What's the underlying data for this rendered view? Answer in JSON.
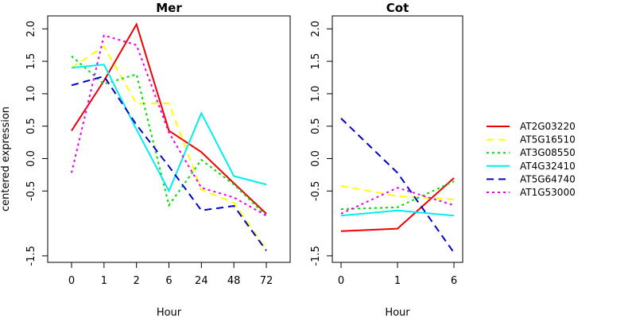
{
  "chart_data": {
    "type": "line",
    "ylabel": "centered expression",
    "ylim": [
      -1.6,
      2.2
    ],
    "yticks": [
      -1.5,
      -0.5,
      0.0,
      0.5,
      1.0,
      1.5,
      2.0
    ],
    "yticklabels": [
      "-1.5",
      "-0.5",
      "0.0",
      "0.5",
      "1.0",
      "1.5",
      "2.0"
    ],
    "legend_position": "right",
    "legend": [
      "AT2G03220",
      "AT5G16510",
      "AT3G08550",
      "AT4G32410",
      "AT5G64740",
      "AT1G53000"
    ],
    "colors": [
      "#ee0000",
      "#ffff00",
      "#00dd00",
      "#00eeee",
      "#0000cc",
      "#ee00ee"
    ],
    "dash": [
      "solid",
      "dashed",
      "dotted",
      "solid",
      "dashed",
      "dotted"
    ],
    "panels": [
      {
        "title": "Mer",
        "xlabel": "Hour",
        "categories": [
          "0",
          "1",
          "2",
          "6",
          "24",
          "48",
          "72"
        ],
        "series": [
          {
            "name": "AT2G03220",
            "values": [
              0.43,
              1.2,
              2.07,
              0.43,
              0.1,
              -0.38,
              -0.85
            ]
          },
          {
            "name": "AT5G16510",
            "values": [
              1.4,
              1.73,
              0.85,
              0.85,
              -0.48,
              -0.68,
              -1.4
            ]
          },
          {
            "name": "AT3G08550",
            "values": [
              1.58,
              1.15,
              1.3,
              -0.72,
              -0.02,
              -0.4,
              -0.88
            ]
          },
          {
            "name": "AT4G32410",
            "values": [
              1.4,
              1.45,
              0.45,
              -0.5,
              0.7,
              -0.27,
              -0.4
            ]
          },
          {
            "name": "AT5G64740",
            "values": [
              1.13,
              1.27,
              0.52,
              -0.12,
              -0.8,
              -0.73,
              -1.42
            ]
          },
          {
            "name": "AT1G53000",
            "values": [
              -0.22,
              1.9,
              1.75,
              0.4,
              -0.45,
              -0.6,
              -0.88
            ]
          }
        ]
      },
      {
        "title": "Cot",
        "xlabel": "Hour",
        "categories": [
          "0",
          "1",
          "6"
        ],
        "series": [
          {
            "name": "AT2G03220",
            "values": [
              -1.12,
              -1.08,
              -0.3
            ]
          },
          {
            "name": "AT5G16510",
            "values": [
              -0.42,
              -0.58,
              -0.63
            ]
          },
          {
            "name": "AT3G08550",
            "values": [
              -0.78,
              -0.75,
              -0.35
            ]
          },
          {
            "name": "AT4G32410",
            "values": [
              -0.88,
              -0.8,
              -0.88
            ]
          },
          {
            "name": "AT5G64740",
            "values": [
              0.62,
              -0.22,
              -1.45
            ]
          },
          {
            "name": "AT1G53000",
            "values": [
              -0.85,
              -0.45,
              -0.72
            ]
          }
        ]
      }
    ]
  }
}
